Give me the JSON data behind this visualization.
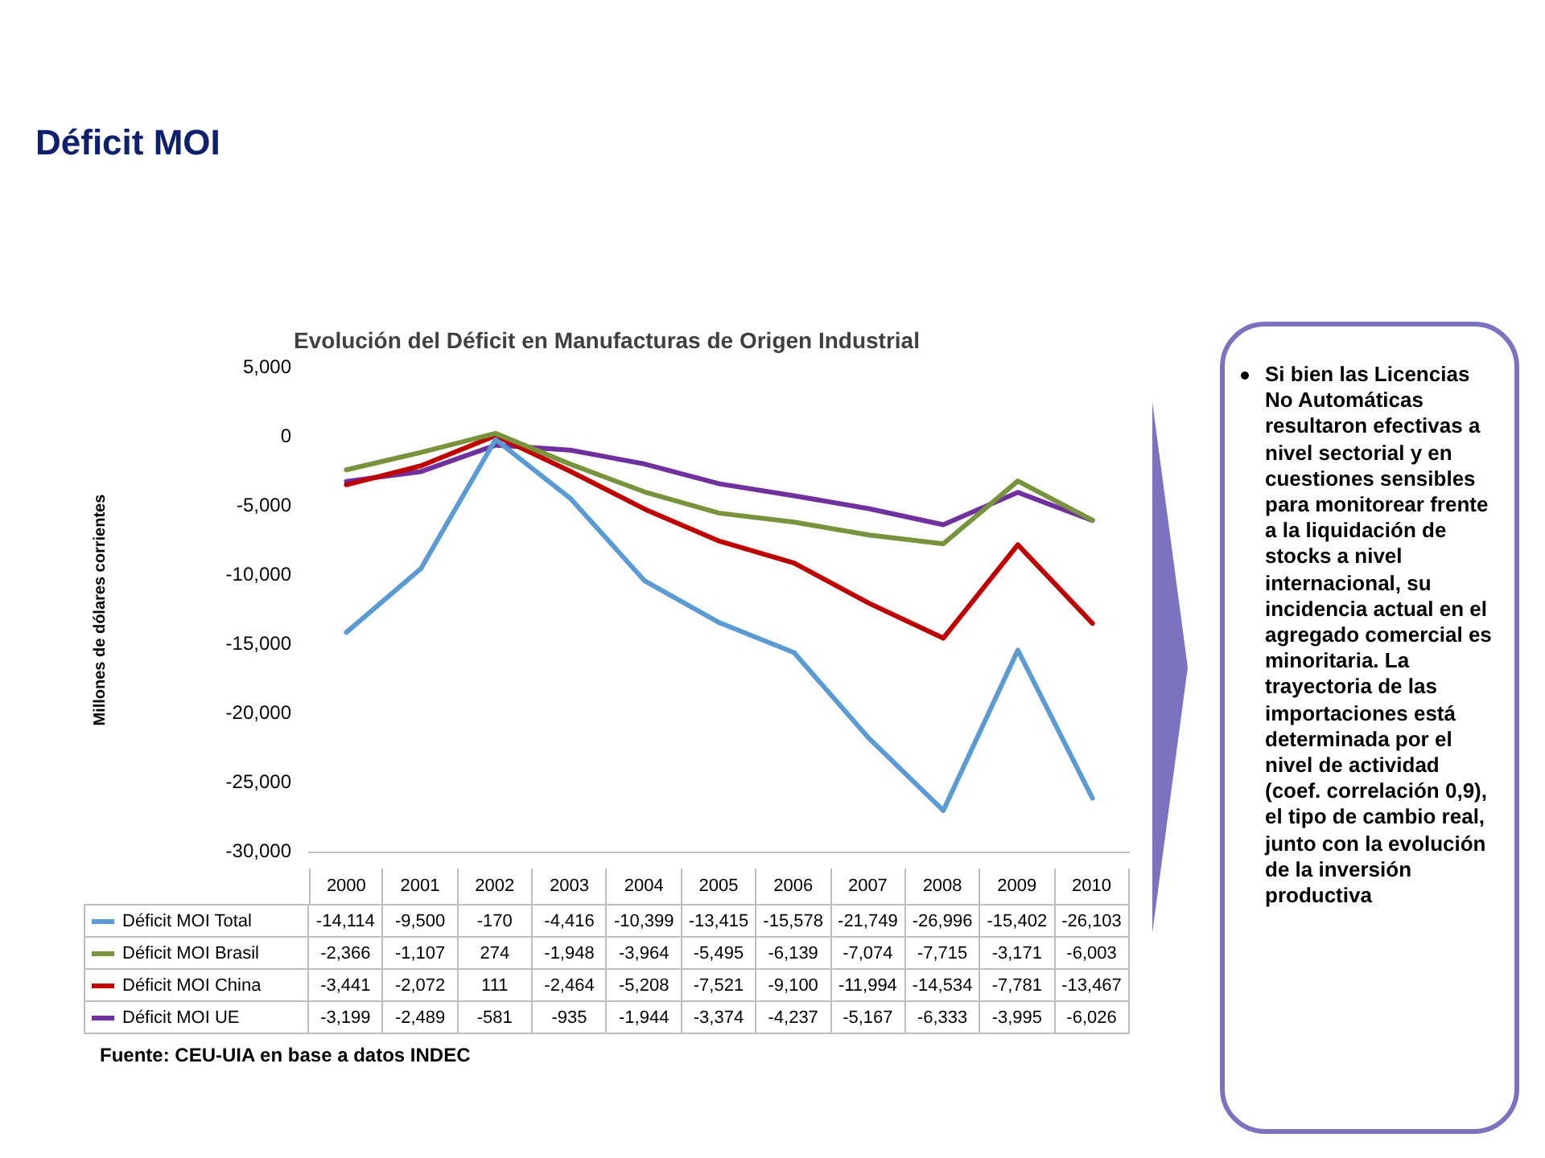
{
  "chart_data": [
    {
      "type": "line",
      "title": "Déficit MOI",
      "subtitle": "Evolución del Déficit en Manufacturas de Origen Industrial",
      "ylabel": "Millones de dólares corrientes",
      "categories": [
        "2000",
        "2001",
        "2002",
        "2003",
        "2004",
        "2005",
        "2006",
        "2007",
        "2008",
        "2009",
        "2010"
      ],
      "series": [
        {
          "name": "Déficit MOI Total",
          "color": "#5b9bd5",
          "values": [
            -14114,
            -9500,
            -170,
            -4416,
            -10399,
            -13415,
            -15578,
            -21749,
            -26996,
            -15402,
            -26103
          ],
          "value_labels": [
            "-14,114",
            "-9,500",
            "-170",
            "-4,416",
            "-10,399",
            "-13,415",
            "-15,578",
            "-21,749",
            "-26,996",
            "-15,402",
            "-26,103"
          ]
        },
        {
          "name": "Déficit MOI Brasil",
          "color": "#77933c",
          "values": [
            -2366,
            -1107,
            274,
            -1948,
            -3964,
            -5495,
            -6139,
            -7074,
            -7715,
            -3171,
            -6003
          ],
          "value_labels": [
            "-2,366",
            "-1,107",
            "274",
            "-1,948",
            "-3,964",
            "-5,495",
            "-6,139",
            "-7,074",
            "-7,715",
            "-3,171",
            "-6,003"
          ]
        },
        {
          "name": "Déficit MOI China",
          "color": "#c00000",
          "values": [
            -3441,
            -2072,
            111,
            -2464,
            -5208,
            -7521,
            -9100,
            -11994,
            -14534,
            -7781,
            -13467
          ],
          "value_labels": [
            "-3,441",
            "-2,072",
            "111",
            "-2,464",
            "-5,208",
            "-7,521",
            "-9,100",
            "-11,994",
            "-14,534",
            "-7,781",
            "-13,467"
          ]
        },
        {
          "name": "Déficit MOI UE",
          "color": "#7030a0",
          "values": [
            -3199,
            -2489,
            -581,
            -935,
            -1944,
            -3374,
            -4237,
            -5167,
            -6333,
            -3995,
            -6026
          ],
          "value_labels": [
            "-3,199",
            "-2,489",
            "-581",
            "-935",
            "-1,944",
            "-3,374",
            "-4,237",
            "-5,167",
            "-6,333",
            "-3,995",
            "-6,026"
          ]
        }
      ],
      "ylim": [
        -30000,
        5000
      ],
      "yticks": [
        {
          "value": -30000,
          "label": "-30,000"
        },
        {
          "value": -25000,
          "label": "-25,000"
        },
        {
          "value": -20000,
          "label": "-20,000"
        },
        {
          "value": -15000,
          "label": "-15,000"
        },
        {
          "value": -10000,
          "label": "-10,000"
        },
        {
          "value": -5000,
          "label": "-5,000"
        },
        0,
        {
          "value": 5000,
          "label": "5,000"
        }
      ],
      "legend": "bottom left",
      "marker": "none",
      "line_style": "solid",
      "annotations": [
        "Fuente: CEU-UIA en base a datos INDEC"
      ]
    },
    {
      "type": "other",
      "annotations": [
        "Si bien las Licencias No Automáticas resultaron efectivas a nivel sectorial y en cuestiones sensibles para monitorear frente a la liquidación de stocks a nivel internacional, su incidencia actual en el agregado comercial es minoritaria. La trayectoria de las importaciones está determinada por el nivel de actividad (coef. correlación 0,9), el tipo de cambio real, junto con la evolución de la inversión productiva"
      ]
    }
  ]
}
